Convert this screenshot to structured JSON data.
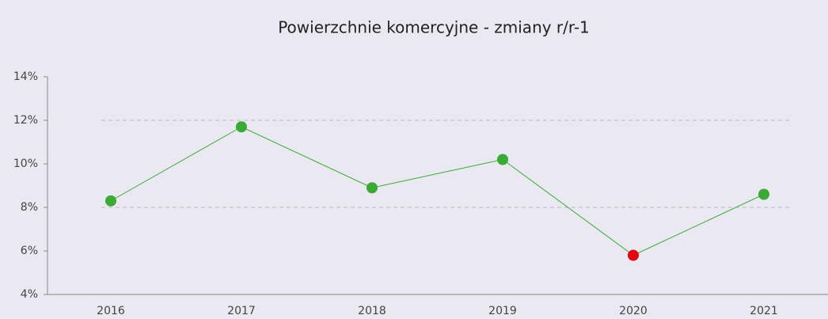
{
  "chart_data": {
    "type": "line",
    "title": "Powierzchnie komercyjne - zmiany r/r-1",
    "categories": [
      "2016",
      "2017",
      "2018",
      "2019",
      "2020",
      "2021"
    ],
    "series": [
      {
        "name": "Powierzchnie komercyjne",
        "color": "#3aaa35",
        "values": [
          8.3,
          11.7,
          8.9,
          10.2,
          5.8,
          8.6
        ],
        "point_colors": [
          "#3aaa35",
          "#3aaa35",
          "#3aaa35",
          "#3aaa35",
          "#e30613",
          "#3aaa35"
        ]
      }
    ],
    "ylim": [
      4,
      14
    ],
    "yticks": [
      {
        "value": 4,
        "label": "4%"
      },
      {
        "value": 6,
        "label": "6%"
      },
      {
        "value": 8,
        "label": "8%"
      },
      {
        "value": 10,
        "label": "10%"
      },
      {
        "value": 12,
        "label": "12%"
      },
      {
        "value": 14,
        "label": "14%"
      }
    ],
    "reference_lines": [
      8,
      12
    ]
  }
}
